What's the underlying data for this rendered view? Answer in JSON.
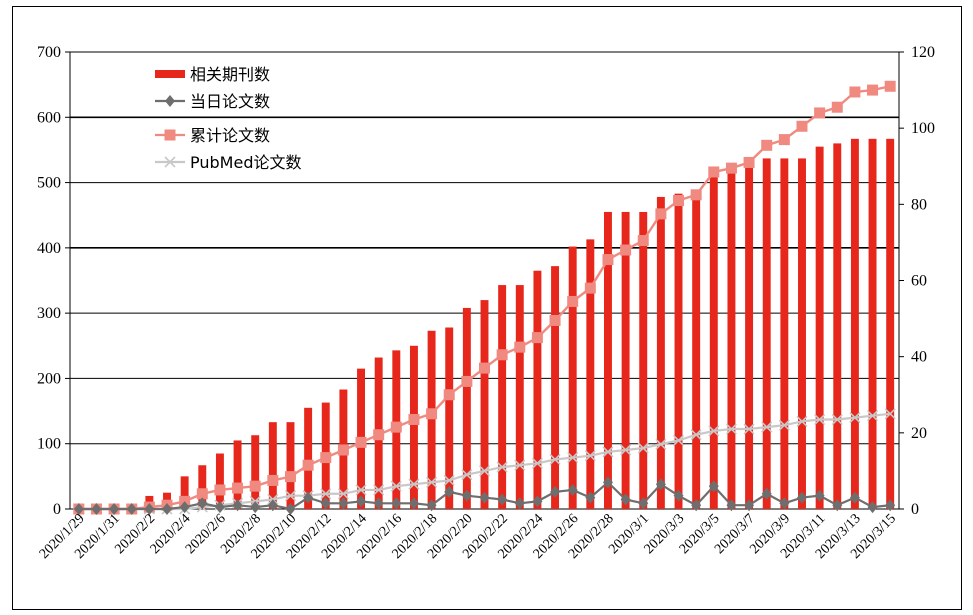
{
  "chart_data": {
    "type": "bar",
    "title": "",
    "categories": [
      "2020/1/29",
      "2020/1/30",
      "2020/1/31",
      "2020/2/1",
      "2020/2/2",
      "2020/2/3",
      "2020/2/4",
      "2020/2/5",
      "2020/2/6",
      "2020/2/7",
      "2020/2/8",
      "2020/2/9",
      "2020/2/10",
      "2020/2/11",
      "2020/2/12",
      "2020/2/13",
      "2020/2/14",
      "2020/2/15",
      "2020/2/16",
      "2020/2/17",
      "2020/2/18",
      "2020/2/19",
      "2020/2/20",
      "2020/2/21",
      "2020/2/22",
      "2020/2/23",
      "2020/2/24",
      "2020/2/25",
      "2020/2/26",
      "2020/2/27",
      "2020/2/28",
      "2020/2/29",
      "2020/3/1",
      "2020/3/2",
      "2020/3/3",
      "2020/3/4",
      "2020/3/5",
      "2020/3/6",
      "2020/3/7",
      "2020/3/8",
      "2020/3/9",
      "2020/3/10",
      "2020/3/11",
      "2020/3/12",
      "2020/3/13",
      "2020/3/14",
      "2020/3/15"
    ],
    "x_tick_labels": [
      "2020/1/29",
      "2020/1/31",
      "2020/2/2",
      "2020/2/4",
      "2020/2/6",
      "2020/2/8",
      "2020/2/10",
      "2020/2/12",
      "2020/2/14",
      "2020/2/16",
      "2020/2/18",
      "2020/2/20",
      "2020/2/22",
      "2020/2/24",
      "2020/2/26",
      "2020/2/28",
      "2020/3/1",
      "2020/3/3",
      "2020/3/5",
      "2020/3/7",
      "2020/3/9",
      "2020/3/11",
      "2020/3/13",
      "2020/3/15"
    ],
    "y_left": {
      "ylim": [
        0,
        700
      ],
      "ticks": [
        0,
        100,
        200,
        300,
        400,
        500,
        600,
        700
      ]
    },
    "y_right": {
      "ylim": [
        0,
        120
      ],
      "ticks": [
        0,
        20,
        40,
        60,
        80,
        100,
        120
      ]
    },
    "legend_position": "top-left",
    "series": [
      {
        "name": "相关期刊数",
        "type": "bar",
        "axis": "left",
        "color": "#e8271c",
        "values": [
          0,
          0,
          0,
          0,
          20,
          25,
          50,
          67,
          85,
          105,
          113,
          133,
          133,
          155,
          163,
          183,
          215,
          232,
          243,
          250,
          273,
          278,
          308,
          320,
          343,
          343,
          365,
          372,
          402,
          413,
          455,
          455,
          455,
          478,
          483,
          483,
          513,
          517,
          532,
          537,
          537,
          537,
          555,
          560,
          567,
          567,
          567
        ]
      },
      {
        "name": "当日论文数",
        "type": "line",
        "axis": "right",
        "color": "#6e6e6e",
        "marker": "diamond",
        "values": [
          0,
          0,
          0,
          0,
          0,
          0,
          0.5,
          1.5,
          0.5,
          1,
          0.5,
          1,
          0,
          3,
          1.5,
          1.5,
          2,
          1.5,
          1.5,
          1.5,
          1,
          4.5,
          3.5,
          3,
          2.5,
          1.5,
          2,
          4.5,
          5,
          3,
          7,
          2.5,
          1.5,
          6.5,
          3.5,
          1,
          6,
          1,
          1,
          4,
          1.5,
          3,
          3.5,
          1,
          3,
          0.5,
          1
        ]
      },
      {
        "name": "累计论文数",
        "type": "line",
        "axis": "right",
        "color": "#f08a80",
        "marker": "square",
        "values": [
          0,
          0,
          0,
          0,
          0.5,
          1,
          2,
          4,
          5,
          5.5,
          6,
          7.5,
          8.5,
          11.5,
          13.5,
          15.5,
          17.5,
          19.5,
          21.5,
          23.5,
          25,
          30,
          33.5,
          37,
          40.5,
          42.5,
          45,
          49.5,
          54.5,
          58,
          65.5,
          68,
          70.5,
          77.5,
          81,
          82.5,
          88.5,
          89.5,
          91,
          95.5,
          97,
          100.5,
          104,
          105.5,
          109.5,
          110,
          111
        ]
      },
      {
        "name": "PubMed论文数",
        "type": "line",
        "axis": "right",
        "color": "#c8c8c8",
        "marker": "x",
        "values": [
          0,
          0,
          0,
          0,
          0,
          0,
          0,
          0.5,
          1,
          1.5,
          2,
          2.5,
          3.5,
          3.5,
          4,
          4,
          5,
          5,
          6,
          6.5,
          7,
          7.5,
          9,
          10,
          11,
          11.5,
          12,
          13,
          13.5,
          14,
          15,
          15.5,
          16,
          17,
          18,
          19.5,
          20.5,
          21,
          21,
          21.5,
          22,
          23,
          23.5,
          23.5,
          24,
          24.5,
          25
        ]
      }
    ]
  }
}
